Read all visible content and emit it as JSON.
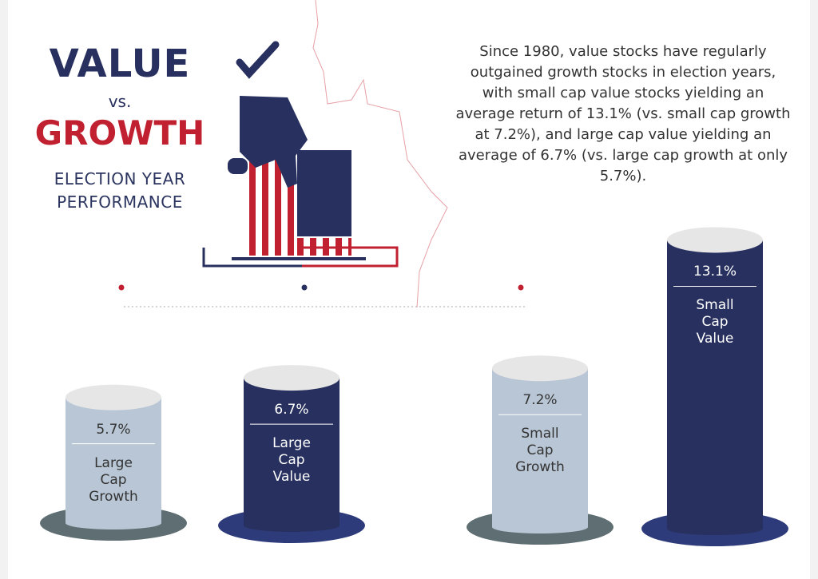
{
  "chart_data": {
    "type": "bar",
    "title_lines": [
      "VALUE",
      "vs.",
      "GROWTH"
    ],
    "subtitle": "ELECTION YEAR PERFORMANCE",
    "annotation": "Since 1980, value stocks have regularly outgained growth stocks in election years, with small cap value stocks yielding an average return of 13.1% (vs. small cap growth at 7.2%), and large cap value yielding an average of 6.7% (vs. large cap growth at only 5.7%).",
    "categories": [
      "Large Cap Growth",
      "Large Cap Value",
      "Small Cap Growth",
      "Small Cap Value"
    ],
    "values": [
      5.7,
      6.7,
      7.2,
      13.1
    ],
    "value_labels": [
      "5.7%",
      "6.7%",
      "7.2%",
      "13.1%"
    ],
    "colors": [
      "#b9c6d5",
      "#27305e",
      "#b9c6d5",
      "#27305e"
    ]
  }
}
